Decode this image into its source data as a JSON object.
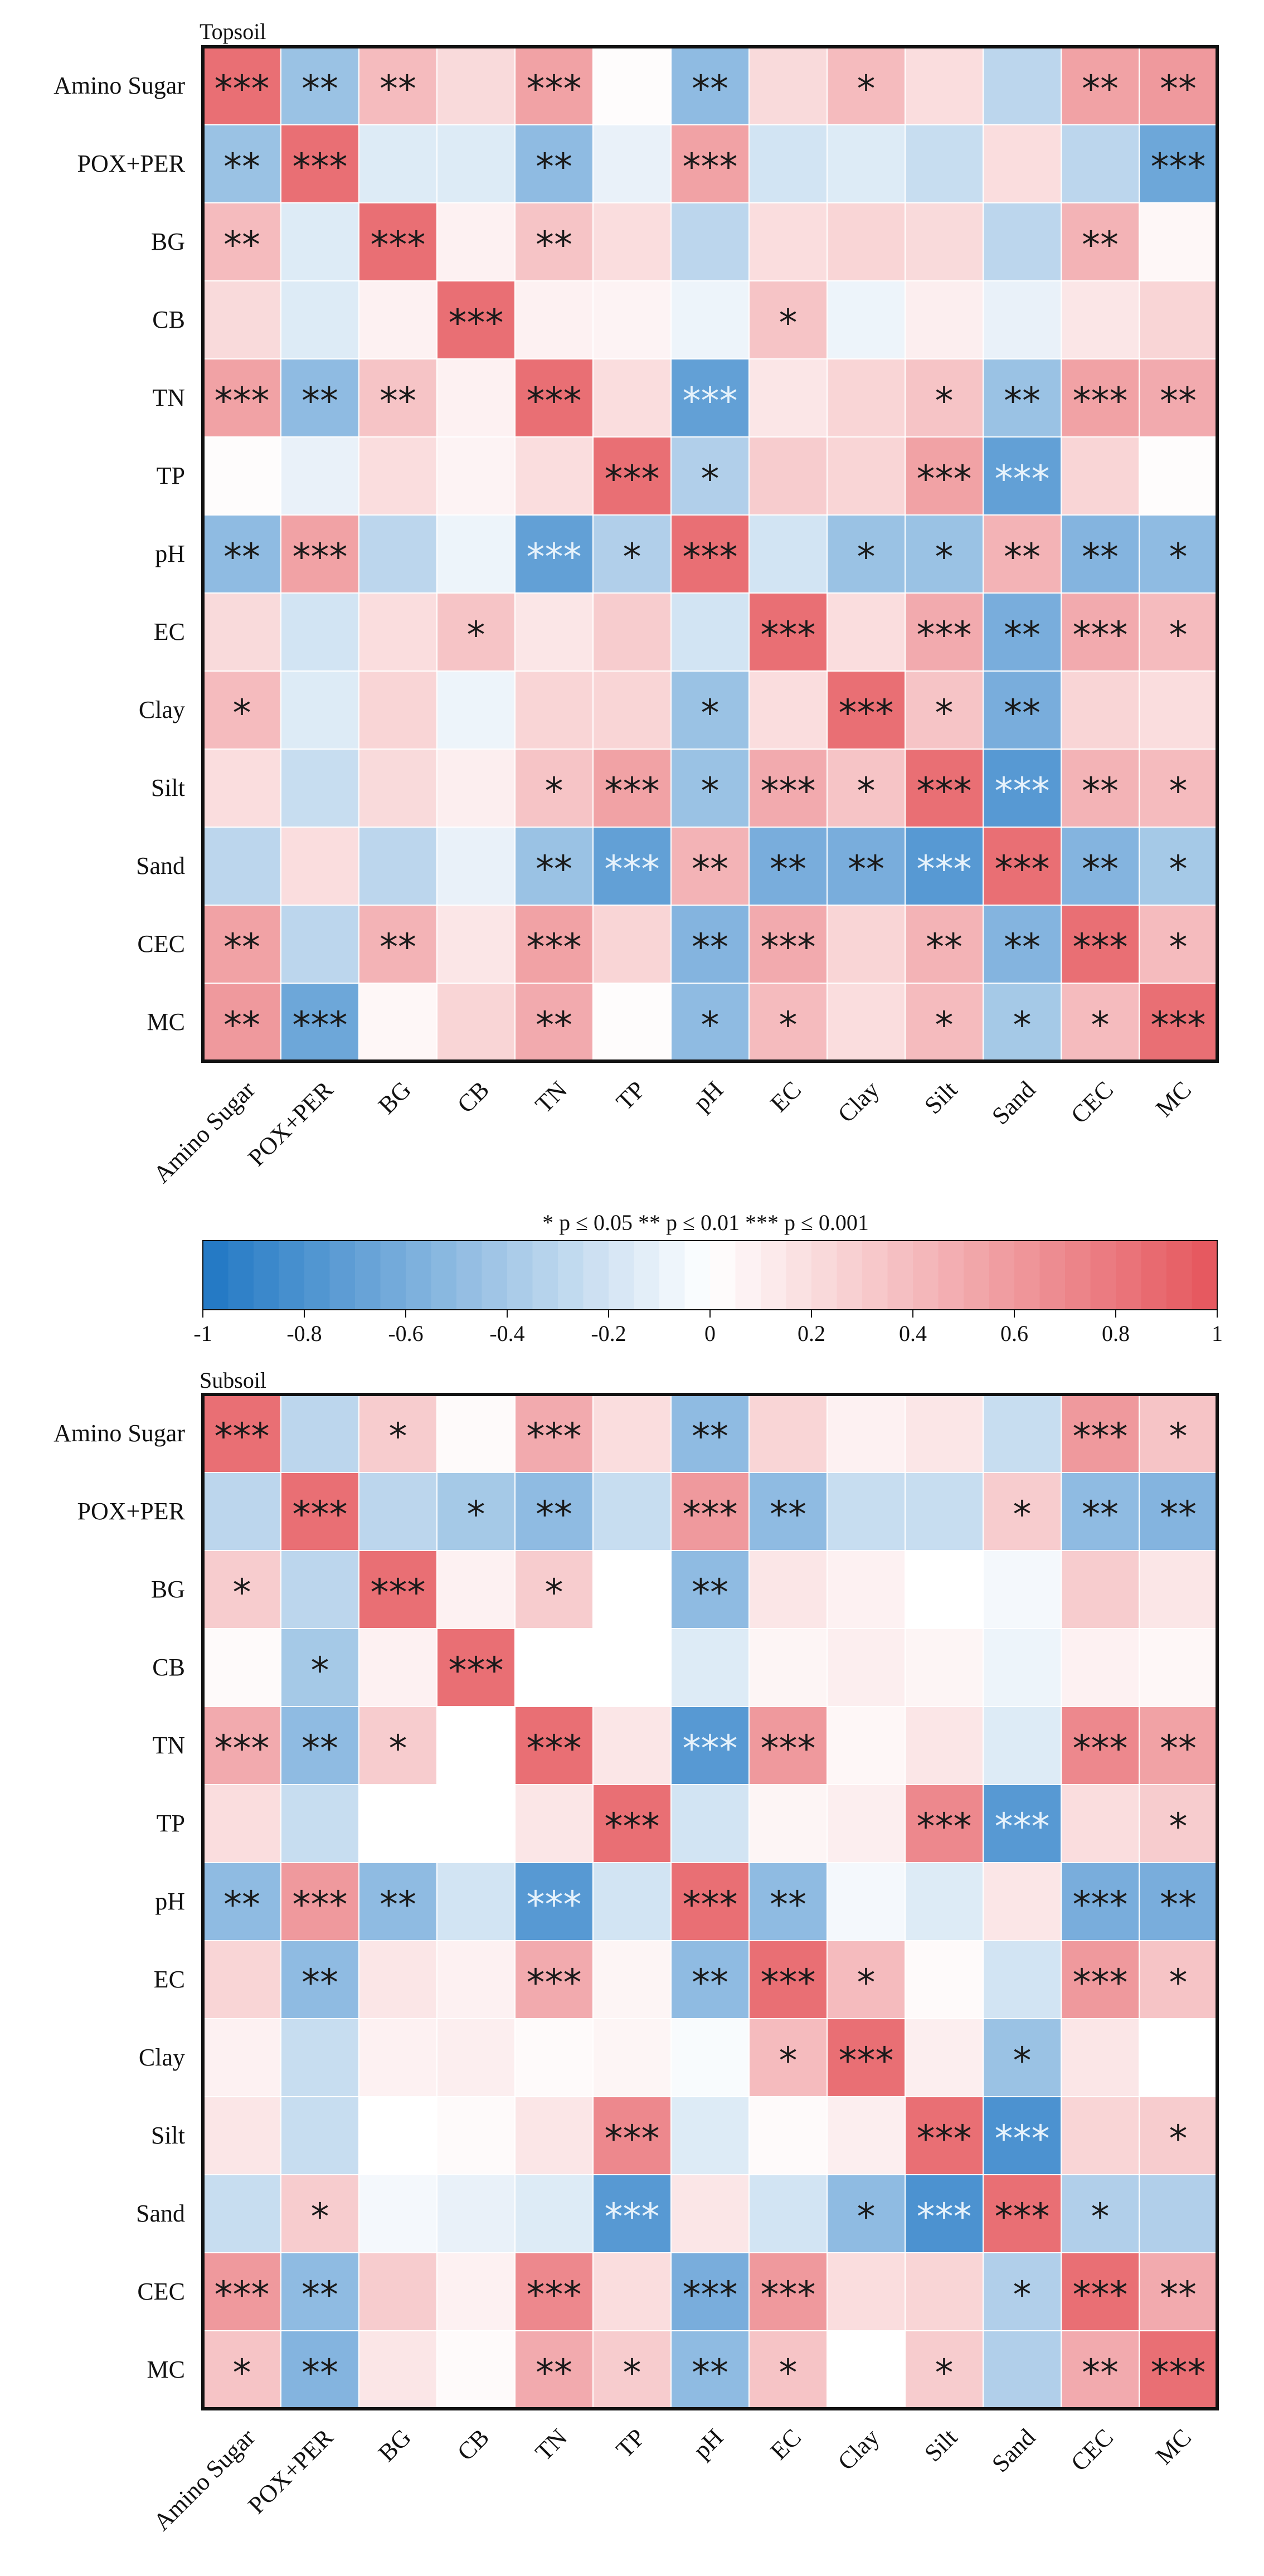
{
  "chart_data": [
    {
      "type": "heatmap",
      "title": "Topsoil",
      "rows": [
        "Amino Sugar",
        "POX+PER",
        "BG",
        "CB",
        "TN",
        "TP",
        "pH",
        "EC",
        "Clay",
        "Silt",
        "Sand",
        "CEC",
        "MC"
      ],
      "columns": [
        "Amino Sugar",
        "POX+PER",
        "BG",
        "CB",
        "TN",
        "TP",
        "pH",
        "EC",
        "Clay",
        "Silt",
        "Sand",
        "CEC",
        "MC"
      ],
      "values": [
        [
          0.85,
          -0.45,
          0.4,
          0.22,
          0.55,
          0.02,
          -0.5,
          0.22,
          0.4,
          0.2,
          -0.3,
          0.55,
          0.6
        ],
        [
          -0.45,
          0.85,
          -0.15,
          -0.15,
          -0.5,
          -0.1,
          0.55,
          -0.2,
          -0.15,
          -0.25,
          0.2,
          -0.3,
          -0.65
        ],
        [
          0.4,
          -0.15,
          0.85,
          0.08,
          0.35,
          0.2,
          -0.3,
          0.2,
          0.25,
          0.22,
          -0.3,
          0.45,
          0.05
        ],
        [
          0.22,
          -0.15,
          0.08,
          0.85,
          0.08,
          0.07,
          -0.08,
          0.35,
          -0.08,
          0.1,
          -0.1,
          0.15,
          0.25
        ],
        [
          0.55,
          -0.5,
          0.35,
          0.08,
          0.85,
          0.2,
          -0.7,
          0.15,
          0.25,
          0.35,
          -0.45,
          0.55,
          0.5
        ],
        [
          0.02,
          -0.1,
          0.2,
          0.07,
          0.2,
          0.85,
          -0.35,
          0.3,
          0.25,
          0.55,
          -0.7,
          0.25,
          0.02
        ],
        [
          -0.5,
          0.55,
          -0.3,
          -0.08,
          -0.7,
          -0.35,
          0.85,
          -0.2,
          -0.45,
          -0.45,
          0.45,
          -0.55,
          -0.5
        ],
        [
          0.22,
          -0.2,
          0.2,
          0.35,
          0.15,
          0.3,
          -0.2,
          0.85,
          0.2,
          0.5,
          -0.6,
          0.5,
          0.4
        ],
        [
          0.4,
          -0.15,
          0.25,
          -0.08,
          0.25,
          0.25,
          -0.45,
          0.2,
          0.85,
          0.35,
          -0.6,
          0.25,
          0.2
        ],
        [
          0.2,
          -0.25,
          0.22,
          0.1,
          0.35,
          0.55,
          -0.45,
          0.5,
          0.35,
          0.85,
          -0.75,
          0.45,
          0.4
        ],
        [
          -0.3,
          0.2,
          -0.3,
          -0.1,
          -0.45,
          -0.7,
          0.45,
          -0.6,
          -0.6,
          -0.75,
          0.85,
          -0.55,
          -0.4
        ],
        [
          0.55,
          -0.3,
          0.45,
          0.15,
          0.55,
          0.25,
          -0.55,
          0.5,
          0.25,
          0.45,
          -0.55,
          0.85,
          0.4
        ],
        [
          0.6,
          -0.65,
          0.05,
          0.25,
          0.5,
          0.02,
          -0.5,
          0.4,
          0.2,
          0.4,
          -0.4,
          0.4,
          0.85
        ]
      ],
      "significance": [
        [
          "***",
          "**",
          "**",
          "",
          "***",
          "",
          "**",
          "",
          "*",
          "",
          "",
          "**",
          "**"
        ],
        [
          "**",
          "***",
          "",
          "",
          "**",
          "",
          "***",
          "",
          "",
          "",
          "",
          "",
          "***"
        ],
        [
          "**",
          "",
          "***",
          "",
          "**",
          "",
          "",
          "",
          "",
          "",
          "",
          "**",
          ""
        ],
        [
          "",
          "",
          "",
          "***",
          "",
          "",
          "",
          "*",
          "",
          "",
          "",
          "",
          ""
        ],
        [
          "***",
          "**",
          "**",
          "",
          "***",
          "",
          "***",
          "",
          "",
          "*",
          "**",
          "***",
          "**"
        ],
        [
          "",
          "",
          "",
          "",
          "",
          "***",
          "*",
          "",
          "",
          "***",
          "***",
          "",
          ""
        ],
        [
          "**",
          "***",
          "",
          "",
          "***",
          "*",
          "***",
          "",
          "*",
          "*",
          "**",
          "**",
          "*"
        ],
        [
          "",
          "",
          "",
          "*",
          "",
          "",
          "",
          "***",
          "",
          "***",
          "**",
          "***",
          "*"
        ],
        [
          "*",
          "",
          "",
          "",
          "",
          "",
          "*",
          "",
          "***",
          "*",
          "**",
          "",
          ""
        ],
        [
          "",
          "",
          "",
          "",
          "*",
          "***",
          "*",
          "***",
          "*",
          "***",
          "***",
          "**",
          "*"
        ],
        [
          "",
          "",
          "",
          "",
          "**",
          "***",
          "**",
          "**",
          "**",
          "***",
          "***",
          "**",
          "*"
        ],
        [
          "**",
          "",
          "**",
          "",
          "***",
          "",
          "**",
          "***",
          "",
          "**",
          "**",
          "***",
          "*"
        ],
        [
          "**",
          "***",
          "",
          "",
          "**",
          "",
          "*",
          "*",
          "",
          "*",
          "*",
          "*",
          "***"
        ]
      ],
      "color_range": [
        -1,
        1
      ]
    },
    {
      "type": "heatmap",
      "title": "Subsoil",
      "rows": [
        "Amino Sugar",
        "POX+PER",
        "BG",
        "CB",
        "TN",
        "TP",
        "pH",
        "EC",
        "Clay",
        "Silt",
        "Sand",
        "CEC",
        "MC"
      ],
      "columns": [
        "Amino Sugar",
        "POX+PER",
        "BG",
        "CB",
        "TN",
        "TP",
        "pH",
        "EC",
        "Clay",
        "Silt",
        "Sand",
        "CEC",
        "MC"
      ],
      "values": [
        [
          0.85,
          -0.3,
          0.3,
          0.03,
          0.5,
          0.2,
          -0.5,
          0.25,
          0.08,
          0.15,
          -0.25,
          0.6,
          0.35
        ],
        [
          -0.3,
          0.85,
          -0.3,
          -0.4,
          -0.5,
          -0.25,
          0.6,
          -0.5,
          -0.25,
          -0.25,
          0.3,
          -0.5,
          -0.55
        ],
        [
          0.3,
          -0.3,
          0.85,
          0.08,
          0.3,
          0.0,
          -0.5,
          0.15,
          0.08,
          0.0,
          -0.05,
          0.3,
          0.15
        ],
        [
          0.03,
          -0.4,
          0.08,
          0.85,
          0.0,
          0.0,
          -0.15,
          0.06,
          0.1,
          0.06,
          -0.08,
          0.08,
          0.05
        ],
        [
          0.5,
          -0.5,
          0.3,
          0.0,
          0.85,
          0.15,
          -0.75,
          0.6,
          0.05,
          0.15,
          -0.15,
          0.7,
          0.55
        ],
        [
          0.2,
          -0.25,
          0.0,
          0.0,
          0.15,
          0.85,
          -0.2,
          0.06,
          0.1,
          0.7,
          -0.75,
          0.2,
          0.3
        ],
        [
          -0.5,
          0.6,
          -0.5,
          -0.2,
          -0.75,
          -0.2,
          0.85,
          -0.5,
          -0.05,
          -0.15,
          0.15,
          -0.6,
          -0.6
        ],
        [
          0.25,
          -0.5,
          0.15,
          0.08,
          0.5,
          0.06,
          -0.5,
          0.85,
          0.4,
          0.03,
          -0.2,
          0.6,
          0.35
        ],
        [
          0.08,
          -0.25,
          0.08,
          0.1,
          0.03,
          0.06,
          -0.03,
          0.4,
          0.85,
          0.1,
          -0.45,
          0.15,
          0.0
        ],
        [
          0.15,
          -0.25,
          0.0,
          0.03,
          0.15,
          0.7,
          -0.15,
          0.03,
          0.1,
          0.85,
          -0.8,
          0.25,
          0.3
        ],
        [
          -0.25,
          0.3,
          -0.05,
          -0.1,
          -0.15,
          -0.75,
          0.15,
          -0.2,
          -0.5,
          -0.8,
          0.85,
          -0.35,
          -0.35
        ],
        [
          0.6,
          -0.5,
          0.3,
          0.08,
          0.7,
          0.2,
          -0.6,
          0.6,
          0.2,
          0.25,
          -0.35,
          0.85,
          0.5
        ],
        [
          0.35,
          -0.55,
          0.15,
          0.03,
          0.5,
          0.3,
          -0.5,
          0.35,
          0.0,
          0.3,
          -0.35,
          0.5,
          0.85
        ]
      ],
      "significance": [
        [
          "***",
          "",
          "*",
          "",
          "***",
          "",
          "**",
          "",
          "",
          "",
          "",
          "***",
          "*"
        ],
        [
          "",
          "***",
          "",
          "*",
          "**",
          "",
          "***",
          "**",
          "",
          "",
          "*",
          "**",
          "**"
        ],
        [
          "*",
          "",
          "***",
          "",
          "*",
          "",
          "**",
          "",
          "",
          "",
          "",
          "",
          ""
        ],
        [
          "",
          "*",
          "",
          "***",
          "",
          "",
          "",
          "",
          "",
          "",
          "",
          "",
          ""
        ],
        [
          "***",
          "**",
          "*",
          "",
          "***",
          "",
          "***",
          "***",
          "",
          "",
          "",
          "***",
          "**"
        ],
        [
          "",
          "",
          "",
          "",
          "",
          "***",
          "",
          "",
          "",
          "***",
          "***",
          "",
          "*"
        ],
        [
          "**",
          "***",
          "**",
          "",
          "***",
          "",
          "***",
          "**",
          "",
          "",
          "",
          "***",
          "**"
        ],
        [
          "",
          "**",
          "",
          "",
          "***",
          "",
          "**",
          "***",
          "*",
          "",
          "",
          "***",
          "*"
        ],
        [
          "",
          "",
          "",
          "",
          "",
          "",
          "",
          "*",
          "***",
          "",
          "*",
          "",
          ""
        ],
        [
          "",
          "",
          "",
          "",
          "",
          "***",
          "",
          "",
          "",
          "***",
          "***",
          "",
          "*"
        ],
        [
          "",
          "*",
          "",
          "",
          "",
          "***",
          "",
          "",
          "*",
          "***",
          "***",
          "*",
          ""
        ],
        [
          "***",
          "**",
          "",
          "",
          "***",
          "",
          "***",
          "***",
          "",
          "",
          "*",
          "***",
          "**"
        ],
        [
          "*",
          "**",
          "",
          "",
          "**",
          "*",
          "**",
          "*",
          "",
          "*",
          "",
          "**",
          "***"
        ]
      ],
      "color_range": [
        -1,
        1
      ]
    }
  ],
  "legend": {
    "significance_note": "* p ≤ 0.05  ** p ≤ 0.01  *** p ≤ 0.001",
    "ticks": [
      "-1",
      "-0.8",
      "-0.6",
      "-0.4",
      "-0.2",
      "0",
      "0.2",
      "0.4",
      "0.6",
      "0.8",
      "1"
    ],
    "negative_color": "#1f77c4",
    "zero_color": "#ffffff",
    "positive_color": "#e5555c"
  }
}
